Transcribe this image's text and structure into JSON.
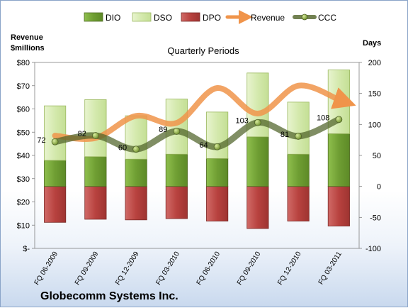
{
  "chart_data": {
    "type": "bar",
    "title": "Quarterly Periods",
    "company": "Globecomm Systems Inc.",
    "left_axis_label": "Revenue $millions",
    "right_axis_label": "Days",
    "left_ylim": [
      0,
      80
    ],
    "left_ticks": [
      "$-",
      "$10",
      "$20",
      "$30",
      "$40",
      "$50",
      "$60",
      "$70",
      "$80"
    ],
    "right_ylim": [
      -100,
      200
    ],
    "right_ticks": [
      "-100",
      "-50",
      "0",
      "50",
      "100",
      "150",
      "200"
    ],
    "categories": [
      "FQ 06-2009",
      "FQ 09-2009",
      "FQ 12-2009",
      "FQ 03-2010",
      "FQ 06-2010",
      "FQ 09-2010",
      "FQ 12-2010",
      "FQ 03-2011"
    ],
    "legend_position": "top",
    "series": [
      {
        "name": "DIO",
        "axis": "right",
        "kind": "stacked-bar",
        "color": "#7aaa3a",
        "values": [
          42,
          48,
          44,
          52,
          45,
          80,
          52,
          85
        ]
      },
      {
        "name": "DSO",
        "axis": "right",
        "kind": "stacked-bar",
        "color": "#d6eab0",
        "values": [
          88,
          92,
          70,
          89,
          75,
          103,
          84,
          103
        ]
      },
      {
        "name": "DPO",
        "axis": "right",
        "kind": "negative-bar",
        "color": "#c0504d",
        "values": [
          -58,
          -53,
          -54,
          -52,
          -56,
          -68,
          -56,
          -64
        ]
      },
      {
        "name": "Revenue",
        "axis": "left",
        "kind": "line",
        "color": "#f0944a",
        "values": [
          48.5,
          47.5,
          57,
          54,
          69,
          58,
          70,
          64
        ]
      },
      {
        "name": "CCC",
        "axis": "right",
        "kind": "line",
        "color": "#4f6228",
        "values": [
          72,
          82,
          60,
          89,
          64,
          103,
          81,
          108
        ]
      }
    ],
    "ccc_labels": [
      "72",
      "82",
      "60",
      "89",
      "64",
      "103",
      "81",
      "108"
    ]
  }
}
